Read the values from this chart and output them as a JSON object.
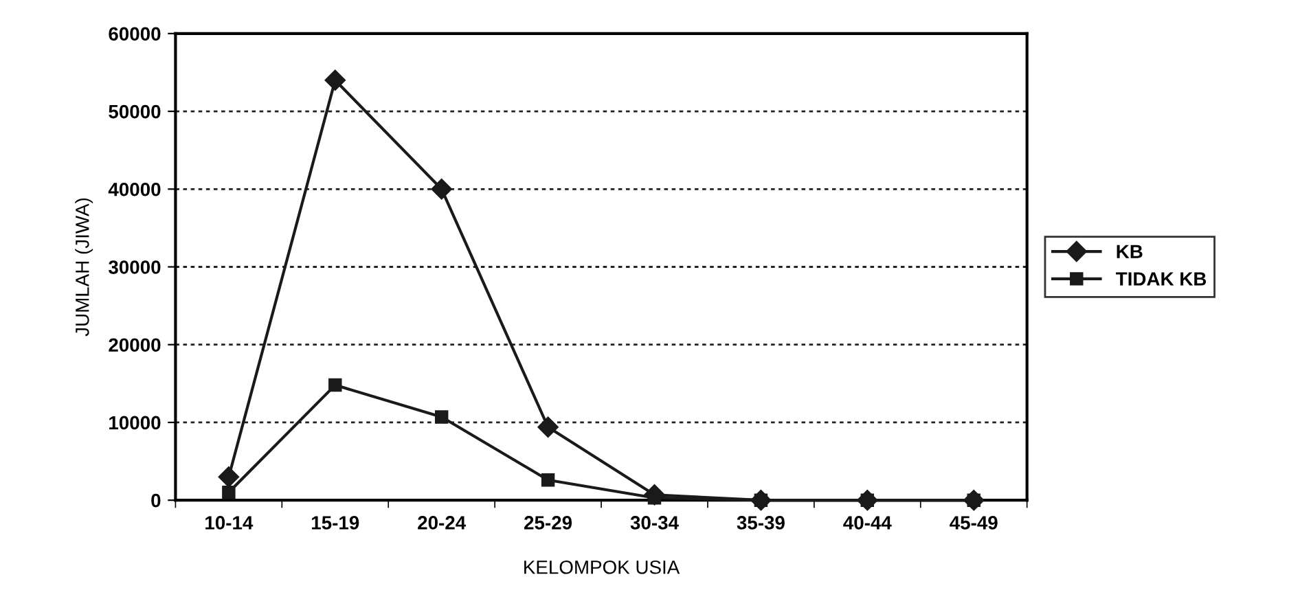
{
  "chart_data": {
    "type": "line",
    "xlabel": "KELOMPOK USIA",
    "ylabel": "JUMLAH (JIWA)",
    "categories": [
      "10-14",
      "15-19",
      "20-24",
      "25-29",
      "30-34",
      "35-39",
      "40-44",
      "45-49"
    ],
    "series": [
      {
        "name": "KB",
        "color": "#1a1a1a",
        "marker": "diamond",
        "values": [
          3000,
          54000,
          40000,
          9400,
          700,
          0,
          0,
          0
        ]
      },
      {
        "name": "TIDAK KB",
        "color": "#1a1a1a",
        "marker": "square",
        "values": [
          1000,
          14800,
          10700,
          2600,
          300,
          0,
          0,
          0
        ]
      }
    ],
    "ylim": [
      0,
      60000
    ],
    "yticks": [
      0,
      10000,
      20000,
      30000,
      40000,
      50000,
      60000
    ],
    "grid": "y",
    "legend": "right",
    "line_style": "solid"
  }
}
